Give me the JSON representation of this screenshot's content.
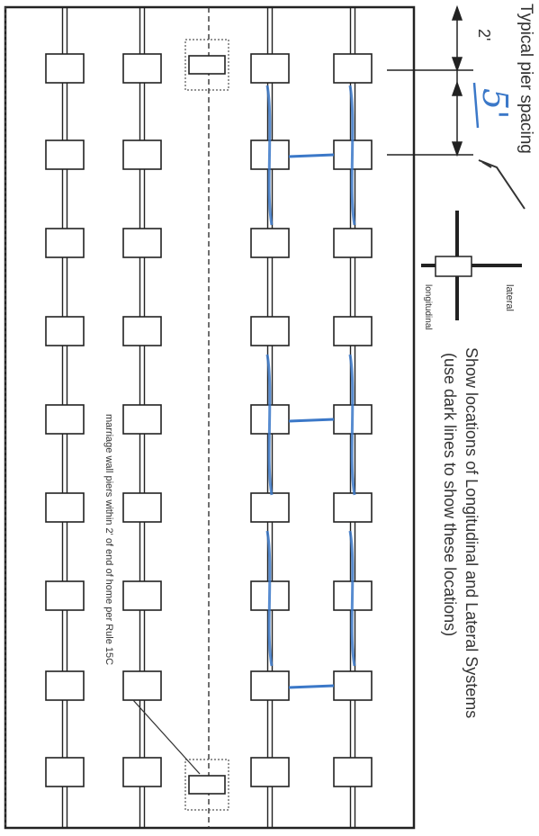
{
  "annotations": {
    "typical_pier_spacing": "Typical pier spacing",
    "spacing_dimension": "2'",
    "handwritten_spacing": "5'",
    "legend_lateral": "lateral",
    "legend_longitudinal": "longitudinal",
    "instruction_line1": "Show locations of Longitudinal and Lateral Systems",
    "instruction_line2": "(use dark lines to show these locations)",
    "marriage_wall_note": "marriage wall piers within 2' of end of home per Rule 15C"
  },
  "colors": {
    "ink": "#222222",
    "pen_blue": "#3b78c8",
    "paper": "#ffffff"
  }
}
